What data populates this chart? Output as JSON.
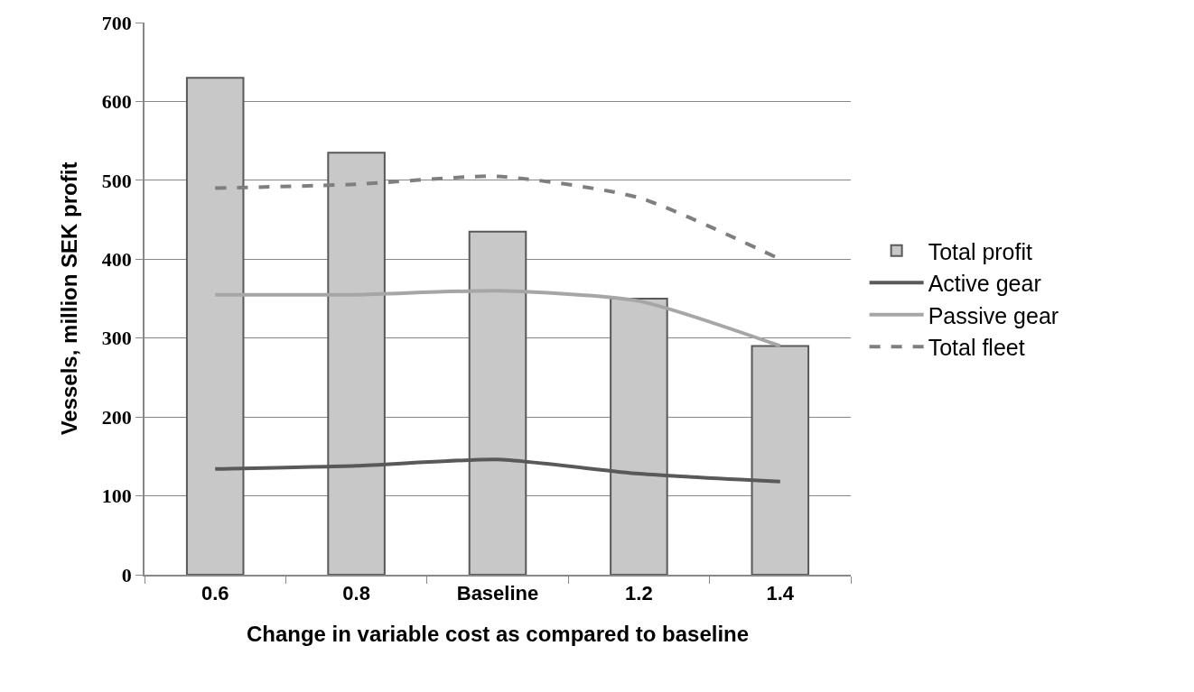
{
  "chart_data": {
    "type": "bar",
    "xlabel": "Change in variable cost as compared to baseline",
    "ylabel": "Vessels, million SEK profit",
    "categories": [
      "0.6",
      "0.8",
      "Baseline",
      "1.2",
      "1.4"
    ],
    "series": [
      {
        "name": "Total profit",
        "color": "#c8c8c8",
        "values": [
          630,
          535,
          435,
          350,
          290
        ]
      },
      {
        "name": "Active gear",
        "type": "line",
        "color": "#595959",
        "line_style": "solid",
        "values": [
          134,
          138,
          146,
          128,
          118
        ]
      },
      {
        "name": "Passive gear",
        "type": "line",
        "color": "#a6a6a6",
        "line_style": "solid",
        "values": [
          355,
          355,
          360,
          347,
          290
        ]
      },
      {
        "name": "Total fleet",
        "type": "line",
        "color": "#7f7f7f",
        "line_style": "dashed",
        "values": [
          490,
          495,
          505,
          478,
          400
        ]
      }
    ],
    "ylim": [
      0,
      700
    ],
    "yticks": [
      0,
      100,
      200,
      300,
      400,
      500,
      600,
      700
    ],
    "grid": "y",
    "legend": "right",
    "marker": "none"
  }
}
